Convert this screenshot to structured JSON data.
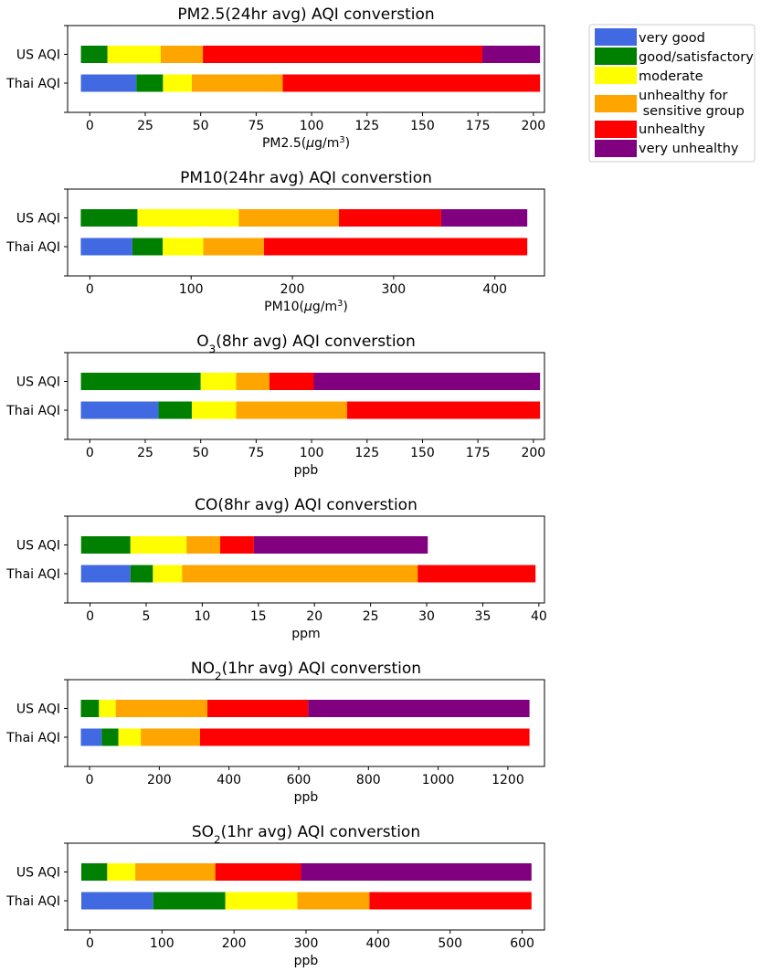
{
  "legend": {
    "entries": [
      {
        "label_lines": [
          "very good"
        ],
        "color": "#4169e1"
      },
      {
        "label_lines": [
          "good/satisfactory"
        ],
        "color": "#008000"
      },
      {
        "label_lines": [
          "moderate"
        ],
        "color": "#ffff00"
      },
      {
        "label_lines": [
          "unhealthy for",
          " sensitive group"
        ],
        "color": "#ffa500"
      },
      {
        "label_lines": [
          "unhealthy"
        ],
        "color": "#ff0000"
      },
      {
        "label_lines": [
          "very unhealthy"
        ],
        "color": "#800080"
      }
    ]
  },
  "chart_data": [
    {
      "type": "bar",
      "orientation": "horizontal-stacked",
      "title": "PM2.5(24hr avg) AQI converstion",
      "title_parts": [
        {
          "t": "PM2.5(24hr avg) AQI converstion"
        }
      ],
      "xlabel_parts": [
        {
          "t": "PM2.5("
        },
        {
          "t": "μ",
          "it": true
        },
        {
          "t": "g/m"
        },
        {
          "t": "3",
          "sup": true
        },
        {
          "t": ")"
        }
      ],
      "categories": [
        "US AQI",
        "Thai AQI"
      ],
      "xlim": [
        -10,
        205
      ],
      "xticks": [
        0,
        25,
        50,
        75,
        100,
        125,
        150,
        175,
        200
      ],
      "series": [
        {
          "category": "US AQI",
          "start": -4,
          "breaks": [
            8,
            32,
            51,
            177,
            203
          ],
          "levels": [
            1,
            2,
            3,
            4,
            5
          ]
        },
        {
          "category": "Thai AQI",
          "start": -4,
          "breaks": [
            21,
            33,
            46,
            87,
            203
          ],
          "levels": [
            0,
            1,
            2,
            3,
            4
          ]
        }
      ]
    },
    {
      "type": "bar",
      "orientation": "horizontal-stacked",
      "title": "PM10(24hr avg) AQI converstion",
      "title_parts": [
        {
          "t": "PM10(24hr avg) AQI converstion"
        }
      ],
      "xlabel_parts": [
        {
          "t": "PM10("
        },
        {
          "t": "μ",
          "it": true
        },
        {
          "t": "g/m"
        },
        {
          "t": "3",
          "sup": true
        },
        {
          "t": ")"
        }
      ],
      "categories": [
        "US AQI",
        "Thai AQI"
      ],
      "xlim": [
        -22,
        449
      ],
      "xticks": [
        0,
        100,
        200,
        300,
        400
      ],
      "series": [
        {
          "category": "US AQI",
          "start": -9,
          "breaks": [
            47,
            147,
            246,
            347,
            432
          ],
          "levels": [
            1,
            2,
            3,
            4,
            5
          ]
        },
        {
          "category": "Thai AQI",
          "start": -9,
          "breaks": [
            42,
            72,
            112,
            172,
            432
          ],
          "levels": [
            0,
            1,
            2,
            3,
            4
          ]
        }
      ]
    },
    {
      "type": "bar",
      "orientation": "horizontal-stacked",
      "title": "O3(8hr avg) AQI converstion",
      "title_parts": [
        {
          "t": "O"
        },
        {
          "t": "3",
          "sub": true
        },
        {
          "t": "(8hr avg) AQI converstion"
        }
      ],
      "xlabel_parts": [
        {
          "t": "ppb"
        }
      ],
      "categories": [
        "US AQI",
        "Thai AQI"
      ],
      "xlim": [
        -10,
        205
      ],
      "xticks": [
        0,
        25,
        50,
        75,
        100,
        125,
        150,
        175,
        200
      ],
      "series": [
        {
          "category": "US AQI",
          "start": -4,
          "breaks": [
            50,
            66,
            81,
            101,
            203
          ],
          "levels": [
            1,
            2,
            3,
            4,
            5
          ]
        },
        {
          "category": "Thai AQI",
          "start": -4,
          "breaks": [
            31,
            46,
            66,
            116,
            203
          ],
          "levels": [
            0,
            1,
            2,
            3,
            4
          ]
        }
      ]
    },
    {
      "type": "bar",
      "orientation": "horizontal-stacked",
      "title": "CO(8hr avg) AQI converstion",
      "title_parts": [
        {
          "t": "CO(8hr avg) AQI converstion"
        }
      ],
      "xlabel_parts": [
        {
          "t": "ppm"
        }
      ],
      "categories": [
        "US AQI",
        "Thai AQI"
      ],
      "xlim": [
        -2,
        40.5
      ],
      "xticks": [
        0,
        5,
        10,
        15,
        20,
        25,
        30,
        35,
        40
      ],
      "series": [
        {
          "category": "US AQI",
          "start": -0.8,
          "breaks": [
            3.6,
            8.6,
            11.6,
            14.6,
            30.1
          ],
          "levels": [
            1,
            2,
            3,
            4,
            5
          ]
        },
        {
          "category": "Thai AQI",
          "start": -0.8,
          "breaks": [
            3.6,
            5.6,
            8.2,
            29.2,
            39.7
          ],
          "levels": [
            0,
            1,
            2,
            3,
            4
          ]
        }
      ]
    },
    {
      "type": "bar",
      "orientation": "horizontal-stacked",
      "title": "NO2(1hr avg) AQI converstion",
      "title_parts": [
        {
          "t": "NO"
        },
        {
          "t": "2",
          "sub": true
        },
        {
          "t": "(1hr avg) AQI converstion"
        }
      ],
      "xlabel_parts": [
        {
          "t": "ppb"
        }
      ],
      "categories": [
        "US AQI",
        "Thai AQI"
      ],
      "xlim": [
        -63,
        1305
      ],
      "xticks": [
        0,
        200,
        400,
        600,
        800,
        1000,
        1200
      ],
      "series": [
        {
          "category": "US AQI",
          "start": -25,
          "breaks": [
            27,
            75,
            338,
            627,
            1262
          ],
          "levels": [
            1,
            2,
            3,
            4,
            5
          ]
        },
        {
          "category": "Thai AQI",
          "start": -25,
          "breaks": [
            35,
            83,
            147,
            317,
            1262
          ],
          "levels": [
            0,
            1,
            2,
            3,
            4
          ]
        }
      ]
    },
    {
      "type": "bar",
      "orientation": "horizontal-stacked",
      "title": "SO2(1hr avg) AQI converstion",
      "title_parts": [
        {
          "t": "SO"
        },
        {
          "t": "2",
          "sub": true
        },
        {
          "t": "(1hr avg) AQI converstion"
        }
      ],
      "xlabel_parts": [
        {
          "t": "ppb"
        }
      ],
      "categories": [
        "US AQI",
        "Thai AQI"
      ],
      "xlim": [
        -31,
        631
      ],
      "xticks": [
        0,
        100,
        200,
        300,
        400,
        500,
        600
      ],
      "series": [
        {
          "category": "US AQI",
          "start": -12,
          "breaks": [
            24,
            63,
            174,
            293,
            613
          ],
          "levels": [
            1,
            2,
            3,
            4,
            5
          ]
        },
        {
          "category": "Thai AQI",
          "start": -12,
          "breaks": [
            88,
            188,
            288,
            388,
            613
          ],
          "levels": [
            0,
            1,
            2,
            3,
            4
          ]
        }
      ]
    }
  ]
}
